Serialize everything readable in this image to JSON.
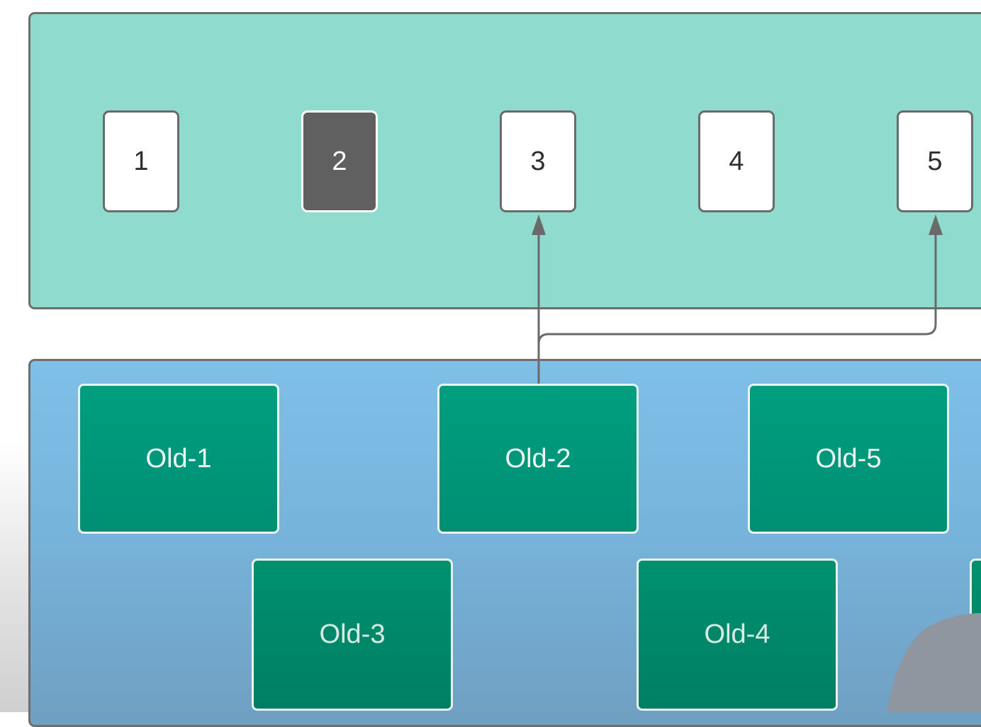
{
  "slots": [
    {
      "label": "1",
      "selected": false
    },
    {
      "label": "2",
      "selected": true
    },
    {
      "label": "3",
      "selected": false
    },
    {
      "label": "4",
      "selected": false
    },
    {
      "label": "5",
      "selected": false
    }
  ],
  "nodes": {
    "old_1": "Old-1",
    "old_2": "Old-2",
    "old_5": "Old-5",
    "old_3": "Old-3",
    "old_4": "Old-4"
  },
  "connections": [
    {
      "from": "Old-2",
      "to": "3"
    },
    {
      "from": "Old-2",
      "to": "5"
    }
  ],
  "colors": {
    "top_panel": "#8fdbcd",
    "bottom_panel": "#7fc0e8",
    "node_fill": "#009e80",
    "selected_slot": "#606060",
    "border": "#6e6e6e"
  }
}
